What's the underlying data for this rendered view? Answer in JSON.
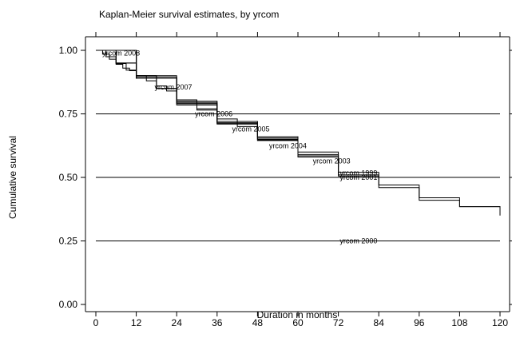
{
  "chart_data": {
    "type": "line",
    "title": "Kaplan-Meier survival estimates, by yrcom",
    "xlabel": "Duration in months",
    "ylabel": "Cumulative survival",
    "xlim": [
      0,
      120
    ],
    "ylim": [
      0,
      1
    ],
    "xticks": [
      0,
      12,
      24,
      36,
      48,
      60,
      72,
      84,
      96,
      108,
      120
    ],
    "yticks": [
      0.0,
      0.25,
      0.5,
      0.75,
      1.0
    ],
    "ytick_labels": [
      "0.00",
      "0.25",
      "0.50",
      "0.75",
      "1.00"
    ],
    "reference_lines_y": [
      0.25,
      0.5,
      0.75
    ],
    "series": [
      {
        "name": "yrcom 2008",
        "label_pos": [
          7.5,
          0.989
        ],
        "x": [
          0,
          2,
          4,
          6,
          8,
          10,
          12
        ],
        "y": [
          1.0,
          0.985,
          0.965,
          0.945,
          0.93,
          0.92,
          0.915
        ]
      },
      {
        "name": "yrcom 2007",
        "label_pos": [
          23,
          0.855
        ],
        "x": [
          0,
          3,
          6,
          9,
          12,
          15,
          18,
          21,
          24
        ],
        "y": [
          1.0,
          0.975,
          0.948,
          0.922,
          0.9,
          0.88,
          0.86,
          0.84,
          0.825
        ]
      },
      {
        "name": "yrcom 2006",
        "label_pos": [
          35,
          0.75
        ],
        "x": [
          0,
          6,
          12,
          18,
          24,
          30,
          36
        ],
        "y": [
          1.0,
          0.95,
          0.9,
          0.85,
          0.805,
          0.77,
          0.74
        ]
      },
      {
        "name": "yrcom 2005",
        "label_pos": [
          46,
          0.69
        ],
        "x": [
          0,
          6,
          12,
          18,
          24,
          30,
          36,
          42,
          48
        ],
        "y": [
          1.0,
          0.95,
          0.9,
          0.85,
          0.8,
          0.765,
          0.73,
          0.7,
          0.67
        ]
      },
      {
        "name": "yrcom 2004",
        "label_pos": [
          57,
          0.625
        ],
        "x": [
          0,
          12,
          24,
          36,
          48,
          60
        ],
        "y": [
          1.0,
          0.9,
          0.8,
          0.72,
          0.66,
          0.605
        ]
      },
      {
        "name": "yrcom 2003",
        "label_pos": [
          70,
          0.565
        ],
        "x": [
          0,
          12,
          24,
          36,
          48,
          60,
          72
        ],
        "y": [
          1.0,
          0.895,
          0.795,
          0.72,
          0.655,
          0.6,
          0.54
        ]
      },
      {
        "name": "yrcom 1999",
        "label_pos": [
          78,
          0.518
        ],
        "x": [
          0,
          12,
          24,
          36,
          48,
          60,
          72,
          84
        ],
        "y": [
          1.0,
          0.89,
          0.79,
          0.715,
          0.65,
          0.59,
          0.52,
          0.5
        ]
      },
      {
        "name": "yrcom 2001",
        "label_pos": [
          78,
          0.5
        ],
        "x": [
          0,
          12,
          24,
          36,
          48,
          60,
          72,
          84,
          96,
          108,
          120
        ],
        "y": [
          1.0,
          0.89,
          0.79,
          0.712,
          0.648,
          0.585,
          0.505,
          0.46,
          0.41,
          0.385,
          0.35
        ]
      },
      {
        "name": "yrcom 2000",
        "label_pos": [
          78,
          0.25
        ],
        "x": [
          0,
          12,
          24,
          36,
          48,
          60,
          72,
          84,
          96,
          108,
          120
        ],
        "y": [
          1.0,
          0.89,
          0.785,
          0.71,
          0.645,
          0.58,
          0.51,
          0.47,
          0.42,
          0.385,
          0.36
        ]
      }
    ]
  }
}
